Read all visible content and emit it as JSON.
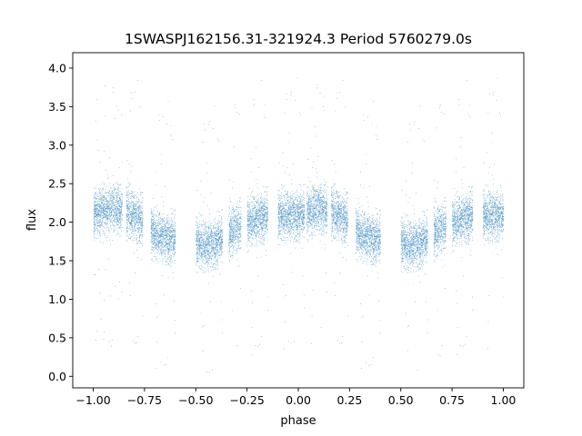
{
  "chart_data": {
    "type": "scatter",
    "title": "1SWASPJ162156.31-321924.3 Period 5760279.0s",
    "xlabel": "phase",
    "ylabel": "flux",
    "xlim": [
      -1.1,
      1.1
    ],
    "ylim": [
      -0.15,
      4.2
    ],
    "xticks": [
      -1.0,
      -0.75,
      -0.5,
      -0.25,
      0.0,
      0.25,
      0.5,
      0.75,
      1.0
    ],
    "xtick_labels": [
      "−1.00",
      "−0.75",
      "−0.50",
      "−0.25",
      "0.00",
      "0.25",
      "0.50",
      "0.75",
      "1.00"
    ],
    "yticks": [
      0.0,
      0.5,
      1.0,
      1.5,
      2.0,
      2.5,
      3.0,
      3.5,
      4.0
    ],
    "ytick_labels": [
      "0.0",
      "0.5",
      "1.0",
      "1.5",
      "2.0",
      "2.5",
      "3.0",
      "3.5",
      "4.0"
    ],
    "grid": false,
    "legend": "none",
    "marker_color": "#1f77b4",
    "series": [
      {
        "points_profile": {
          "phase": [
            -1.0,
            -0.95,
            -0.9,
            -0.85,
            -0.8,
            -0.75,
            -0.7,
            -0.65,
            -0.6,
            -0.55,
            -0.5,
            -0.45,
            -0.4,
            -0.35,
            -0.3,
            -0.25,
            -0.2,
            -0.15,
            -0.1,
            -0.05,
            0.0,
            0.05,
            0.1,
            0.15,
            0.2,
            0.25,
            0.3,
            0.35,
            0.4,
            0.45,
            0.5,
            0.55,
            0.6,
            0.65,
            0.7,
            0.75,
            0.8,
            0.85,
            0.9,
            0.95,
            1.0
          ],
          "median_flux": [
            2.1,
            2.15,
            2.2,
            2.15,
            2.1,
            2.0,
            1.85,
            1.8,
            1.8,
            1.75,
            1.75,
            1.7,
            1.75,
            1.85,
            1.95,
            2.0,
            2.05,
            2.1,
            2.1,
            2.1,
            2.1,
            2.15,
            2.2,
            2.15,
            2.1,
            2.0,
            1.85,
            1.8,
            1.8,
            1.75,
            1.75,
            1.7,
            1.75,
            1.85,
            1.95,
            2.0,
            2.05,
            2.1,
            2.1,
            2.1,
            2.1
          ],
          "spread": 0.3,
          "range": [
            0.05,
            4.0
          ]
        }
      }
    ]
  }
}
